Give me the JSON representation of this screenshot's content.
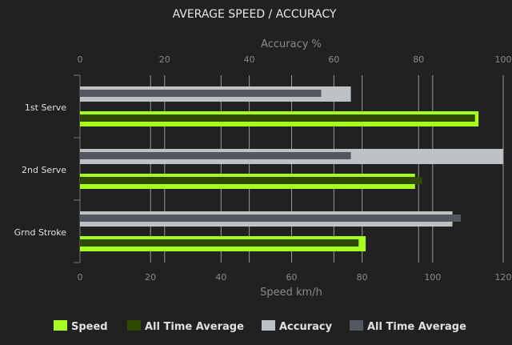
{
  "chart_data": {
    "type": "bar",
    "orientation": "horizontal",
    "title": "AVERAGE SPEED / ACCURACY",
    "categories": [
      "1st Serve",
      "2nd Serve",
      "Grnd Stroke"
    ],
    "top_axis": {
      "label": "Accuracy %",
      "range": [
        0,
        100
      ],
      "ticks": [
        0,
        20,
        40,
        60,
        80,
        100
      ]
    },
    "bottom_axis": {
      "label": "Speed km/h",
      "range": [
        0,
        120
      ],
      "ticks": [
        0,
        20,
        40,
        60,
        80,
        100,
        120
      ]
    },
    "grid": true,
    "legend_position": "bottom",
    "series": [
      {
        "name": "Speed",
        "axis": "speed",
        "color": "#a6ff1f",
        "values": [
          113,
          95,
          81
        ]
      },
      {
        "name": "All Time Average",
        "axis": "speed",
        "color": "#2f4a00",
        "values": [
          112,
          97,
          79
        ]
      },
      {
        "name": "Accuracy",
        "axis": "accuracy",
        "color": "#bec2c5",
        "values": [
          64,
          100,
          88
        ]
      },
      {
        "name": "All Time Average",
        "axis": "accuracy",
        "color": "#535860",
        "values": [
          57,
          64,
          90
        ]
      }
    ]
  }
}
